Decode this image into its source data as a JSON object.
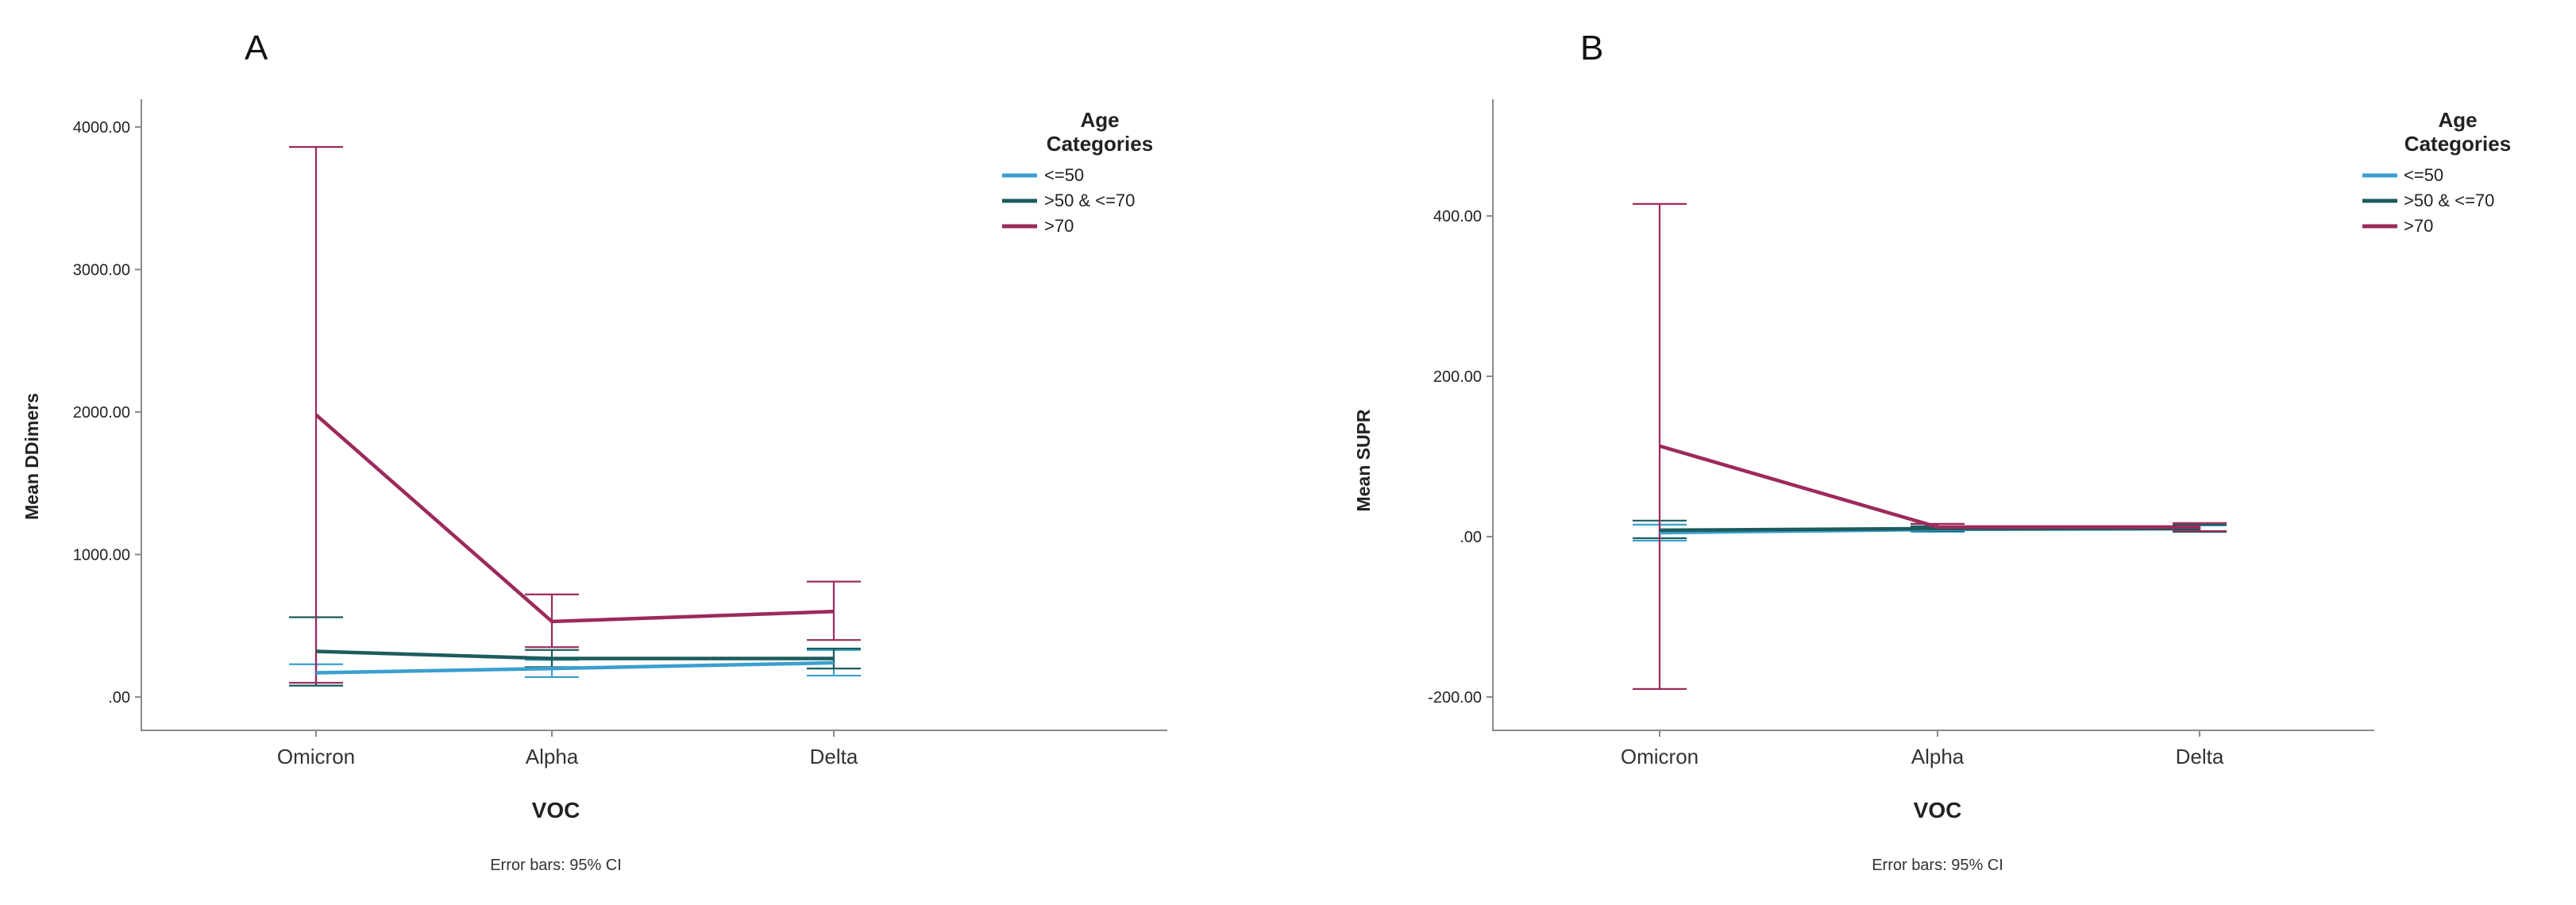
{
  "chart_data": [
    {
      "panel": "A",
      "type": "line",
      "xlabel": "VOC",
      "ylabel": "Mean DDimers",
      "caption": "Error bars: 95% CI",
      "categories": [
        "Omicron",
        "Alpha",
        "Delta"
      ],
      "ylim": [
        -200,
        4200
      ],
      "yticks": [
        0,
        1000,
        2000,
        3000,
        4000
      ],
      "ytick_labels": [
        ".00",
        "1000.00",
        "2000.00",
        "3000.00",
        "4000.00"
      ],
      "legend": {
        "title_line1": "Age",
        "title_line2": "Categories",
        "position": "top-right"
      },
      "series": [
        {
          "name": "<=50",
          "color": "#3a9fd0",
          "values": [
            170,
            200,
            240
          ],
          "ci_low": [
            80,
            140,
            150
          ],
          "ci_high": [
            230,
            260,
            330
          ]
        },
        {
          "name": ">50 & <=70",
          "color": "#1d5c5c",
          "values": [
            320,
            270,
            270
          ],
          "ci_low": [
            80,
            210,
            200
          ],
          "ci_high": [
            560,
            330,
            340
          ]
        },
        {
          "name": ">70",
          "color": "#9c2a5c",
          "values": [
            1980,
            530,
            600
          ],
          "ci_low": [
            100,
            350,
            400
          ],
          "ci_high": [
            3860,
            720,
            810
          ]
        }
      ]
    },
    {
      "panel": "B",
      "type": "line",
      "xlabel": "VOC",
      "ylabel": "Mean SUPR",
      "caption": "Error bars: 95% CI",
      "categories": [
        "Omicron",
        "Alpha",
        "Delta"
      ],
      "ylim": [
        -235,
        535
      ],
      "yticks": [
        -200,
        0,
        200,
        400
      ],
      "ytick_labels": [
        "-200.00",
        ".00",
        "200.00",
        "400.00"
      ],
      "legend": {
        "title_line1": "Age",
        "title_line2": "Categories",
        "position": "top-right"
      },
      "series": [
        {
          "name": "<=50",
          "color": "#3a9fd0",
          "values": [
            5,
            9,
            10
          ],
          "ci_low": [
            -5,
            6,
            6
          ],
          "ci_high": [
            15,
            12,
            14
          ]
        },
        {
          "name": ">50 & <=70",
          "color": "#1d5c5c",
          "values": [
            8,
            10,
            10
          ],
          "ci_low": [
            -2,
            7,
            6
          ],
          "ci_high": [
            20,
            13,
            15
          ]
        },
        {
          "name": ">70",
          "color": "#9c2a5c",
          "values": [
            113,
            12,
            12
          ],
          "ci_low": [
            -190,
            8,
            7
          ],
          "ci_high": [
            415,
            16,
            17
          ]
        }
      ]
    }
  ]
}
